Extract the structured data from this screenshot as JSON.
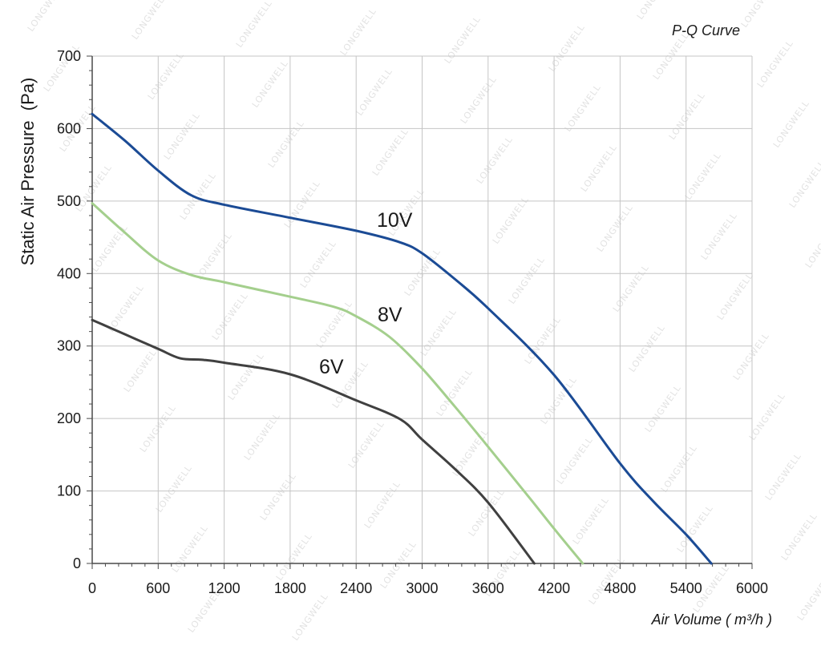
{
  "chart_data": {
    "type": "line",
    "title": "P-Q Curve",
    "xlabel": "Air Volume ( m³/h )",
    "ylabel": "Static Air Pressure  (Pa)",
    "xlim": [
      0,
      6000
    ],
    "ylim": [
      0,
      700
    ],
    "xticks": [
      0,
      600,
      1200,
      1800,
      2400,
      3000,
      3600,
      4200,
      4800,
      5400,
      6000
    ],
    "yticks": [
      0,
      100,
      200,
      300,
      400,
      500,
      600,
      700
    ],
    "grid": true,
    "legend": "none",
    "series": [
      {
        "name": "10V",
        "color": "#1b4b95",
        "points": [
          [
            0,
            620
          ],
          [
            300,
            583
          ],
          [
            600,
            542
          ],
          [
            900,
            508
          ],
          [
            1200,
            495
          ],
          [
            1800,
            477
          ],
          [
            2400,
            459
          ],
          [
            2800,
            443
          ],
          [
            3000,
            428
          ],
          [
            3300,
            392
          ],
          [
            3600,
            352
          ],
          [
            4200,
            260
          ],
          [
            4800,
            138
          ],
          [
            5100,
            86
          ],
          [
            5400,
            40
          ],
          [
            5630,
            0
          ]
        ]
      },
      {
        "name": "8V",
        "color": "#a4cf8d",
        "points": [
          [
            0,
            497
          ],
          [
            300,
            456
          ],
          [
            600,
            418
          ],
          [
            900,
            398
          ],
          [
            1200,
            388
          ],
          [
            1800,
            368
          ],
          [
            2200,
            354
          ],
          [
            2400,
            341
          ],
          [
            2700,
            313
          ],
          [
            3000,
            269
          ],
          [
            3300,
            216
          ],
          [
            3600,
            161
          ],
          [
            4000,
            86
          ],
          [
            4200,
            48
          ],
          [
            4460,
            0
          ]
        ]
      },
      {
        "name": "6V",
        "color": "#404040",
        "points": [
          [
            0,
            336
          ],
          [
            300,
            316
          ],
          [
            600,
            296
          ],
          [
            800,
            283
          ],
          [
            1000,
            281
          ],
          [
            1200,
            277
          ],
          [
            1800,
            261
          ],
          [
            2400,
            225
          ],
          [
            2800,
            199
          ],
          [
            3000,
            171
          ],
          [
            3300,
            130
          ],
          [
            3600,
            84
          ],
          [
            4020,
            0
          ]
        ]
      }
    ]
  },
  "watermark": "LONGWELL"
}
